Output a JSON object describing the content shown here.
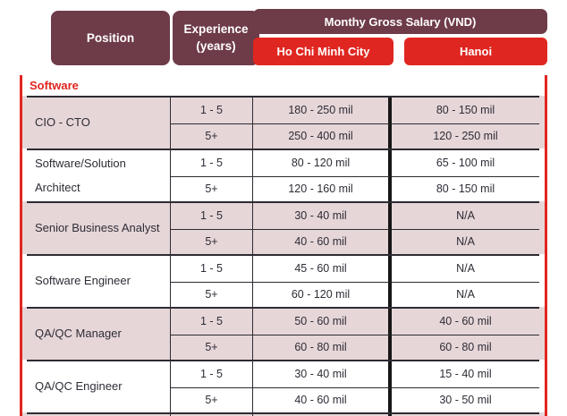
{
  "chart_data": {
    "type": "table",
    "header": {
      "position": "Position",
      "experience": "Experience\n(years)",
      "salary_group": "Monthy Gross Salary (VND)",
      "hcmc": "Ho Chi Minh City",
      "hanoi": "Hanoi"
    },
    "section": "Software",
    "columns": [
      "Position",
      "Experience (years)",
      "Ho Chi Minh City",
      "Hanoi"
    ],
    "unit": "mil VND / month",
    "rows": [
      {
        "position": "CIO - CTO",
        "shaded": true,
        "subrows": [
          {
            "experience": "1 - 5",
            "hcmc": "180 - 250 mil",
            "hanoi": "80 - 150 mil"
          },
          {
            "experience": "5+",
            "hcmc": "250 - 400 mil",
            "hanoi": "120 - 250 mil"
          }
        ]
      },
      {
        "position": "Software/Solution Architect",
        "shaded": false,
        "subrows": [
          {
            "experience": "1 - 5",
            "hcmc": "80 - 120 mil",
            "hanoi": "65 - 100 mil"
          },
          {
            "experience": "5+",
            "hcmc": "120 - 160 mil",
            "hanoi": "80 - 150 mil"
          }
        ]
      },
      {
        "position": "Senior Business Analyst",
        "shaded": true,
        "subrows": [
          {
            "experience": "1 - 5",
            "hcmc": "30 - 40 mil",
            "hanoi": "N/A"
          },
          {
            "experience": "5+",
            "hcmc": "40 - 60 mil",
            "hanoi": "N/A"
          }
        ]
      },
      {
        "position": "Software Engineer",
        "shaded": false,
        "subrows": [
          {
            "experience": "1 - 5",
            "hcmc": "45 - 60 mil",
            "hanoi": "N/A"
          },
          {
            "experience": "5+",
            "hcmc": "60 - 120 mil",
            "hanoi": "N/A"
          }
        ]
      },
      {
        "position": "QA/QC Manager",
        "shaded": true,
        "subrows": [
          {
            "experience": "1 - 5",
            "hcmc": "50 - 60 mil",
            "hanoi": "40 - 60 mil"
          },
          {
            "experience": "5+",
            "hcmc": "60 - 80 mil",
            "hanoi": "60 - 80 mil"
          }
        ]
      },
      {
        "position": "QA/QC Engineer",
        "shaded": false,
        "subrows": [
          {
            "experience": "1 - 5",
            "hcmc": "30 - 40 mil",
            "hanoi": "15 - 40 mil"
          },
          {
            "experience": "5+",
            "hcmc": "40 - 60 mil",
            "hanoi": "30 - 50 mil"
          }
        ]
      }
    ]
  },
  "colors": {
    "maroon": "#6e3b49",
    "red": "#e02620",
    "row_shade": "#e6d6d8",
    "line": "#2d2b33",
    "thick_divider": "#171717",
    "text": "#2e2c36"
  }
}
